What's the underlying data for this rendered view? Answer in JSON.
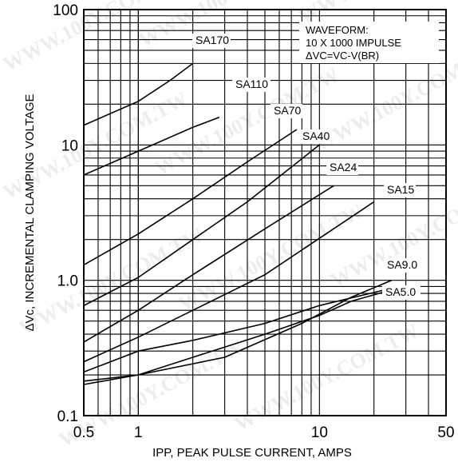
{
  "chart_data": {
    "type": "line",
    "title": "",
    "xlabel": "IPP, PEAK PULSE CURRENT, AMPS",
    "ylabel": "ΔVc, INCREMENTAL CLAMPING VOLTAGE",
    "x_scale": "log",
    "y_scale": "log",
    "xlim": [
      0.5,
      50
    ],
    "ylim": [
      0.1,
      100
    ],
    "x_ticks": [
      "0.5",
      "1",
      "10",
      "50"
    ],
    "y_ticks": [
      "0.1",
      "1.0",
      "10",
      "100"
    ],
    "grid": true,
    "annotation": {
      "line1": "WAVEFORM:",
      "line2": "10 X 1000 IMPULSE",
      "line3": "ΔVC=VC-V(BR)"
    },
    "watermark": "WWW.100Y.COM.TW",
    "series": [
      {
        "name": "SA170",
        "x": [
          0.5,
          1.0,
          1.5,
          2.0
        ],
        "y": [
          14.0,
          21.0,
          30.0,
          40.0
        ]
      },
      {
        "name": "SA170",
        "x": [
          0.5,
          1.0,
          2.0,
          2.8
        ],
        "y": [
          6.0,
          9.0,
          13.5,
          16.0
        ]
      },
      {
        "name": "SA110",
        "x": [
          0.5,
          1.0,
          2.0,
          4.0,
          7.5
        ],
        "y": [
          1.3,
          2.2,
          4.0,
          7.5,
          13.0
        ]
      },
      {
        "name": "SA70",
        "x": [
          0.5,
          1.0,
          2.0,
          4.0,
          10.0
        ],
        "y": [
          0.65,
          1.05,
          2.0,
          3.8,
          10.0
        ]
      },
      {
        "name": "SA40",
        "x": [
          0.5,
          1.0,
          2.0,
          5.0,
          12.0
        ],
        "y": [
          0.35,
          0.6,
          1.1,
          2.4,
          5.0
        ]
      },
      {
        "name": "SA24",
        "x": [
          0.5,
          1.0,
          2.0,
          5.0,
          20.0
        ],
        "y": [
          0.25,
          0.38,
          0.6,
          1.1,
          3.8
        ]
      },
      {
        "name": "SA15",
        "x": [
          0.5,
          1.0,
          2.0,
          5.0,
          10.0,
          23.0
        ],
        "y": [
          0.21,
          0.3,
          0.36,
          0.48,
          0.65,
          0.85
        ]
      },
      {
        "name": "SA9.0",
        "x": [
          0.5,
          1.0,
          3.0,
          8.0,
          15.0,
          25.0
        ],
        "y": [
          0.18,
          0.2,
          0.27,
          0.48,
          0.75,
          1.0
        ]
      },
      {
        "name": "SA5.0",
        "x": [
          0.5,
          1.0,
          2.0,
          5.0,
          10.0,
          15.0,
          25.0
        ],
        "y": [
          0.17,
          0.2,
          0.27,
          0.4,
          0.55,
          0.7,
          0.85
        ]
      }
    ],
    "series_labels": [
      "SA170",
      "SA110",
      "SA70",
      "SA40",
      "SA24",
      "SA15",
      "SA9.0",
      "SA5.0"
    ]
  }
}
